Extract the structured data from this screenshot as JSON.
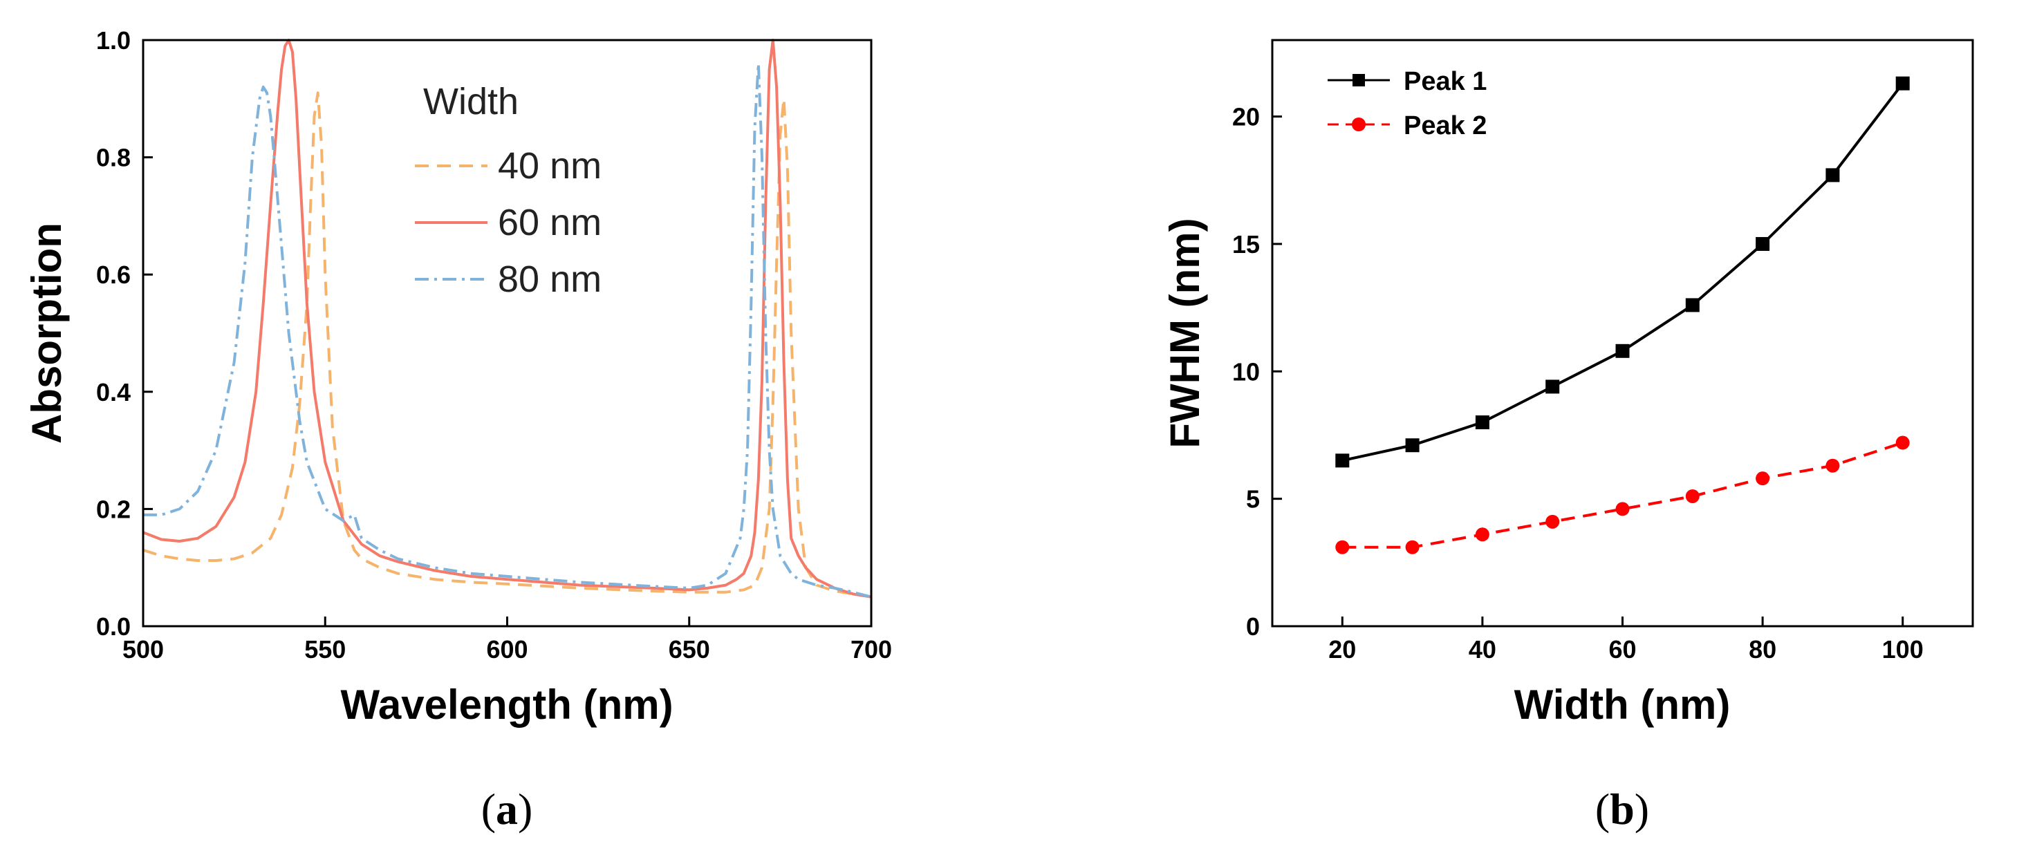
{
  "figure": {
    "panel_a_label": {
      "open": "(",
      "letter": "a",
      "close": ")"
    },
    "panel_b_label": {
      "open": "(",
      "letter": "b",
      "close": ")"
    }
  },
  "chart_data": [
    {
      "type": "line",
      "xlabel": "Wavelength (nm)",
      "ylabel": "Absorption",
      "xlim": [
        500,
        700
      ],
      "ylim": [
        0,
        1.0
      ],
      "xticks": [
        500,
        550,
        600,
        650,
        700
      ],
      "xtick_labels": [
        "500",
        "550",
        "600",
        "650",
        "700"
      ],
      "yticks": [
        0,
        0.2,
        0.4,
        0.6,
        0.8,
        1.0
      ],
      "ytick_labels": [
        "0.0",
        "0.2",
        "0.4",
        "0.6",
        "0.8",
        "1.0"
      ],
      "legend_title": "Width",
      "legend_position": "top-center",
      "series": [
        {
          "name": "40 nm",
          "color": "#f5b36b",
          "style": "dashed",
          "x": [
            500,
            505,
            510,
            515,
            520,
            525,
            530,
            535,
            538,
            541,
            543,
            545,
            546,
            547,
            548,
            549,
            550,
            552,
            555,
            558,
            560,
            565,
            570,
            580,
            590,
            600,
            620,
            640,
            650,
            660,
            665,
            668,
            670,
            672,
            673,
            674,
            675,
            676,
            677,
            678,
            680,
            682,
            685,
            690,
            695,
            700
          ],
          "y": [
            0.13,
            0.12,
            0.115,
            0.112,
            0.112,
            0.115,
            0.125,
            0.15,
            0.19,
            0.27,
            0.38,
            0.55,
            0.72,
            0.87,
            0.91,
            0.82,
            0.6,
            0.34,
            0.18,
            0.13,
            0.115,
            0.1,
            0.09,
            0.08,
            0.075,
            0.072,
            0.065,
            0.06,
            0.058,
            0.058,
            0.062,
            0.07,
            0.1,
            0.2,
            0.38,
            0.62,
            0.84,
            0.9,
            0.78,
            0.5,
            0.2,
            0.1,
            0.07,
            0.06,
            0.055,
            0.05
          ]
        },
        {
          "name": "60 nm",
          "color": "#f47a6a",
          "style": "solid",
          "x": [
            500,
            505,
            510,
            515,
            520,
            525,
            528,
            531,
            533,
            535,
            537,
            538,
            539,
            540,
            541,
            542,
            543,
            545,
            547,
            550,
            555,
            560,
            565,
            570,
            580,
            590,
            600,
            620,
            640,
            650,
            655,
            660,
            663,
            665,
            667,
            668,
            669,
            670,
            671,
            672,
            673,
            674,
            675,
            676,
            677,
            678,
            680,
            682,
            685,
            690,
            695,
            700
          ],
          "y": [
            0.16,
            0.148,
            0.145,
            0.15,
            0.17,
            0.22,
            0.28,
            0.4,
            0.55,
            0.72,
            0.88,
            0.95,
            0.99,
            1.0,
            0.98,
            0.9,
            0.78,
            0.55,
            0.4,
            0.28,
            0.18,
            0.14,
            0.12,
            0.11,
            0.095,
            0.085,
            0.08,
            0.07,
            0.065,
            0.062,
            0.065,
            0.07,
            0.08,
            0.09,
            0.12,
            0.16,
            0.25,
            0.42,
            0.72,
            0.95,
            1.0,
            0.92,
            0.72,
            0.45,
            0.25,
            0.15,
            0.12,
            0.1,
            0.08,
            0.065,
            0.055,
            0.05
          ]
        },
        {
          "name": "80 nm",
          "color": "#7fb3dc",
          "style": "dashdot",
          "x": [
            500,
            505,
            510,
            515,
            520,
            525,
            528,
            530,
            532,
            533,
            534,
            535,
            536,
            538,
            540,
            543,
            545,
            550,
            555,
            558,
            560,
            565,
            570,
            580,
            590,
            600,
            620,
            640,
            650,
            655,
            660,
            662,
            664,
            665,
            666,
            667,
            668,
            669,
            670,
            671,
            672,
            673,
            675,
            678,
            680,
            685,
            690,
            695,
            700
          ],
          "y": [
            0.19,
            0.19,
            0.2,
            0.23,
            0.3,
            0.45,
            0.62,
            0.8,
            0.9,
            0.92,
            0.91,
            0.87,
            0.8,
            0.65,
            0.5,
            0.35,
            0.28,
            0.2,
            0.18,
            0.19,
            0.15,
            0.13,
            0.115,
            0.1,
            0.09,
            0.085,
            0.075,
            0.068,
            0.065,
            0.07,
            0.09,
            0.12,
            0.15,
            0.2,
            0.3,
            0.55,
            0.85,
            0.96,
            0.8,
            0.5,
            0.3,
            0.2,
            0.12,
            0.09,
            0.08,
            0.07,
            0.065,
            0.058,
            0.05
          ]
        }
      ]
    },
    {
      "type": "line",
      "xlabel": "Width (nm)",
      "ylabel": "FWHM (nm)",
      "xlim": [
        10,
        110
      ],
      "ylim": [
        0,
        23
      ],
      "xticks": [
        20,
        40,
        60,
        80,
        100
      ],
      "xtick_labels": [
        "20",
        "40",
        "60",
        "80",
        "100"
      ],
      "yticks": [
        0,
        5,
        10,
        15,
        20
      ],
      "ytick_labels": [
        "0",
        "5",
        "10",
        "15",
        "20"
      ],
      "legend_position": "top-left",
      "series": [
        {
          "name": "Peak 1",
          "color": "#000000",
          "style": "solid",
          "marker": "square",
          "x": [
            20,
            30,
            40,
            50,
            60,
            70,
            80,
            90,
            100
          ],
          "y": [
            6.5,
            7.1,
            8.0,
            9.4,
            10.8,
            12.6,
            15.0,
            17.7,
            21.3
          ]
        },
        {
          "name": "Peak 2",
          "color": "#ff0000",
          "style": "dashed",
          "marker": "circle",
          "x": [
            20,
            30,
            40,
            50,
            60,
            70,
            80,
            90,
            100
          ],
          "y": [
            3.1,
            3.1,
            3.6,
            4.1,
            4.6,
            5.1,
            5.8,
            6.3,
            7.2
          ]
        }
      ]
    }
  ]
}
